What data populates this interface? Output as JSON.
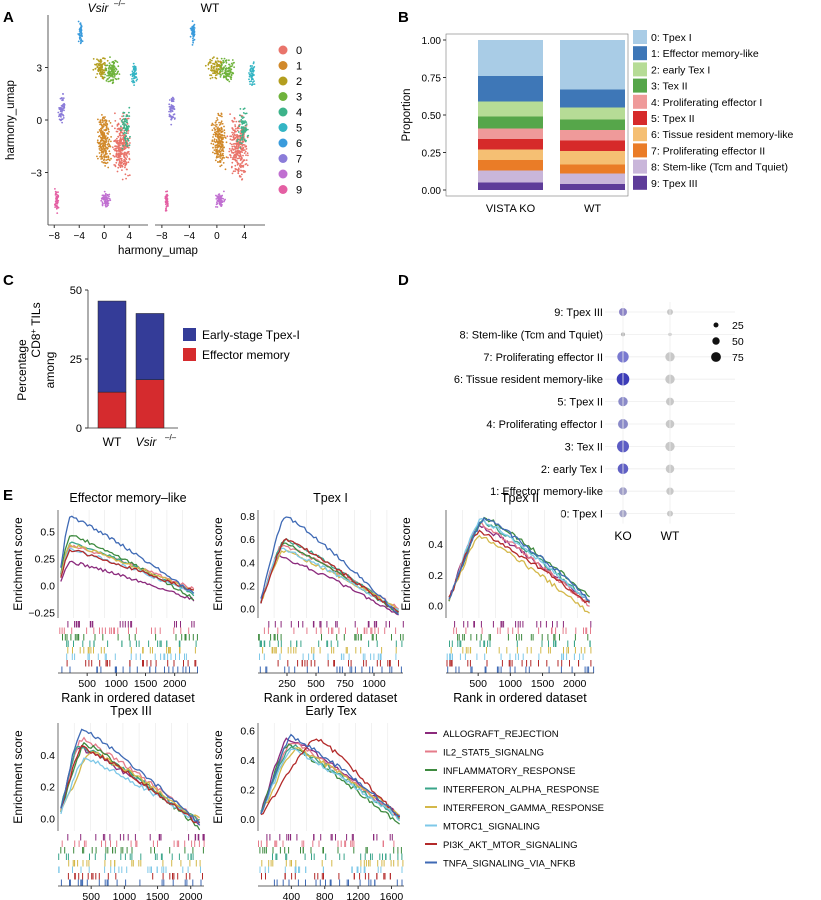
{
  "panels": {
    "A": "A",
    "B": "B",
    "C": "C",
    "D": "D",
    "E": "E"
  },
  "chart_data": [
    {
      "panel": "A",
      "type": "scatter",
      "facets": [
        "Vsir",
        "WT"
      ],
      "facet_superscript": "–/–",
      "xlabel": "harmony_umap",
      "ylabel": "harmony_umap",
      "xticks": [
        "−8",
        "−4",
        "0",
        "4"
      ],
      "yticks": [
        "3",
        "0",
        "−3"
      ],
      "xlim": [
        -9,
        7
      ],
      "ylim": [
        -6,
        6
      ],
      "legend": [
        "0",
        "1",
        "2",
        "3",
        "4",
        "5",
        "6",
        "7",
        "8",
        "9"
      ],
      "colors": [
        "#e9746b",
        "#d1892a",
        "#b39e1f",
        "#6fb33c",
        "#3db38a",
        "#34b5c4",
        "#3a9bdc",
        "#8b7cd9",
        "#c06fd1",
        "#e45fa3"
      ]
    },
    {
      "panel": "B",
      "type": "stacked-bar",
      "ylabel": "Proportion",
      "categories": [
        "VISTA KO",
        "WT"
      ],
      "yticks": [
        "0.00",
        "0.25",
        "0.50",
        "0.75",
        "1.00"
      ],
      "ylim": [
        0,
        1
      ],
      "series": [
        {
          "name": "0: Tpex I",
          "color": "#a9cce6",
          "values": [
            0.24,
            0.33
          ]
        },
        {
          "name": "1: Effector memory-like",
          "color": "#3e77b7",
          "values": [
            0.17,
            0.12
          ]
        },
        {
          "name": "2: early Tex I",
          "color": "#b6dc96",
          "values": [
            0.1,
            0.08
          ]
        },
        {
          "name": "3: Tex II",
          "color": "#56a64a",
          "values": [
            0.08,
            0.07
          ]
        },
        {
          "name": "4: Proliferating effector I",
          "color": "#ef9a9a",
          "values": [
            0.07,
            0.07
          ]
        },
        {
          "name": "5: Tpex II",
          "color": "#d62a2a",
          "values": [
            0.07,
            0.07
          ]
        },
        {
          "name": "6: Tissue resident memory-like",
          "color": "#f5bf73",
          "values": [
            0.07,
            0.09
          ]
        },
        {
          "name": "7: Proliferating effector II",
          "color": "#ea7c27",
          "values": [
            0.07,
            0.06
          ]
        },
        {
          "name": "8: Stem-like (Tcm and Tquiet)",
          "color": "#c9b6da",
          "values": [
            0.08,
            0.07
          ]
        },
        {
          "name": "9: Tpex III",
          "color": "#5e3c99",
          "values": [
            0.05,
            0.04
          ]
        }
      ]
    },
    {
      "panel": "C",
      "type": "stacked-bar",
      "ylabel_lines": [
        "Percentage",
        "among",
        "CD8",
        "+",
        " TILs"
      ],
      "categories": [
        "WT",
        "Vsir"
      ],
      "cat_superscript": "–/–",
      "yticks": [
        "0",
        "25",
        "50"
      ],
      "ylim": [
        0,
        50
      ],
      "series": [
        {
          "name": "Effector memory",
          "color": "#d52b2e",
          "values": [
            13,
            17.5
          ]
        },
        {
          "name": "Early-stage Tpex-I",
          "color": "#343c98",
          "values": [
            33,
            24
          ]
        }
      ]
    },
    {
      "panel": "D",
      "type": "dot",
      "rows": [
        "9: Tpex III",
        "8: Stem-like (Tcm and Tquiet)",
        "7: Proliferating effector II",
        "6: Tissue resident memory-like",
        "5: Tpex II",
        "4: Proliferating effector I",
        "3: Tex II",
        "2: early Tex I",
        "1: Effector memory-like",
        "0: Tpex I"
      ],
      "columns": [
        "KO",
        "WT"
      ],
      "size_legend": [
        "25",
        "50",
        "75"
      ],
      "ko_sizes": [
        45,
        15,
        70,
        80,
        55,
        60,
        75,
        65,
        45,
        40
      ],
      "wt_sizes": [
        30,
        10,
        55,
        55,
        45,
        50,
        55,
        50,
        40,
        30
      ],
      "ko_colors": [
        "#8c84c6",
        "#b3b3b3",
        "#7a7ad0",
        "#3d3db8",
        "#8a8ac8",
        "#8a8ac8",
        "#5c5cc4",
        "#6060c4",
        "#a09fc8",
        "#a4a4c8"
      ],
      "wt_color": "#c8c8c8"
    },
    {
      "panel": "E",
      "type": "line",
      "ylabel": "Enrichment score",
      "xlabel": "Rank in ordered dataset",
      "legend": [
        "ALLOGRAFT_REJECTION",
        "IL2_STAT5_SIGNALNG",
        "INFLAMMATORY_RESPONSE",
        "INTERFERON_ALPHA_RESPONSE",
        "INTERFERON_GAMMA_RESPONSE",
        "MTORC1_SIGNALING",
        "PI3K_AKT_MTOR_SIGNALING",
        "TNFA_SIGNALING_VIA_NFKB"
      ],
      "colors": [
        "#8b2a7c",
        "#e57b8a",
        "#3e8a3f",
        "#3aa58a",
        "#d4b84a",
        "#7ec8e8",
        "#b32a2a",
        "#3f6ab5"
      ],
      "plots": [
        {
          "title": "Effector memory–like",
          "xticks": [
            "500",
            "1000",
            "1500",
            "2000"
          ],
          "xlim": [
            0,
            2400
          ],
          "yticks": [
            "0.5",
            "0.25",
            "0.0",
            "−0.25"
          ],
          "yvals": [
            0.5,
            0.25,
            0.0,
            -0.25
          ],
          "ylim": [
            -0.3,
            0.7
          ],
          "peaks": [
            0.22,
            0.37,
            0.47,
            0.4,
            0.38,
            0.34,
            0.33,
            0.64
          ],
          "peakx": [
            200,
            200,
            200,
            200,
            200,
            200,
            200,
            200
          ],
          "ends": [
            -0.13,
            -0.03,
            -0.12,
            -0.08,
            -0.05,
            -0.07,
            -0.05,
            -0.08
          ]
        },
        {
          "title": "Tpex I",
          "xticks": [
            "250",
            "500",
            "750",
            "1000"
          ],
          "xlim": [
            0,
            1250
          ],
          "yticks": [
            "0.8",
            "0.6",
            "0.4",
            "0.2",
            "0.0"
          ],
          "yvals": [
            0.8,
            0.6,
            0.4,
            0.2,
            0.0
          ],
          "ylim": [
            -0.08,
            0.85
          ],
          "peaks": [
            0.45,
            0.55,
            0.56,
            0.6,
            0.5,
            0.52,
            0.6,
            0.8
          ],
          "peakx": [
            180,
            200,
            220,
            230,
            210,
            200,
            240,
            230
          ],
          "ends": [
            -0.05,
            0.0,
            -0.04,
            -0.03,
            0.0,
            -0.02,
            -0.04,
            -0.05
          ]
        },
        {
          "title": "Tpex II",
          "xticks": [
            "500",
            "1000",
            "1500",
            "2000"
          ],
          "xlim": [
            0,
            2300
          ],
          "yticks": [
            "0.4",
            "0.2",
            "0.0"
          ],
          "yvals": [
            0.4,
            0.2,
            0.0
          ],
          "ylim": [
            -0.08,
            0.62
          ],
          "peaks": [
            0.52,
            0.53,
            0.57,
            0.55,
            0.45,
            0.56,
            0.48,
            0.57
          ],
          "peakx": [
            500,
            520,
            600,
            560,
            520,
            540,
            500,
            600
          ],
          "ends": [
            0.02,
            0.0,
            0.06,
            0.03,
            -0.05,
            0.02,
            0.01,
            0.04
          ]
        },
        {
          "title": "Tpex III",
          "xticks": [
            "500",
            "1000",
            "1500",
            "2000"
          ],
          "xlim": [
            0,
            2200
          ],
          "yticks": [
            "0.4",
            "0.2",
            "0.0"
          ],
          "yvals": [
            0.4,
            0.2,
            0.0
          ],
          "ylim": [
            -0.08,
            0.6
          ],
          "peaks": [
            0.45,
            0.5,
            0.47,
            0.46,
            0.42,
            0.38,
            0.45,
            0.56
          ],
          "peakx": [
            300,
            350,
            400,
            300,
            500,
            400,
            350,
            350
          ],
          "ends": [
            -0.03,
            -0.02,
            -0.06,
            -0.02,
            -0.01,
            -0.03,
            -0.04,
            -0.03
          ]
        },
        {
          "title": "Early Tex",
          "xticks": [
            "400",
            "800",
            "1200",
            "1600"
          ],
          "xlim": [
            0,
            1750
          ],
          "yticks": [
            "0.6",
            "0.4",
            "0.2",
            "0.0"
          ],
          "yvals": [
            0.6,
            0.4,
            0.2,
            0.0
          ],
          "ylim": [
            -0.08,
            0.65
          ],
          "peaks": [
            0.55,
            0.52,
            0.5,
            0.5,
            0.48,
            0.47,
            0.55,
            0.56
          ],
          "peakx": [
            350,
            400,
            350,
            400,
            450,
            400,
            700,
            400
          ],
          "ends": [
            0.02,
            0.0,
            -0.04,
            0.0,
            0.03,
            0.0,
            0.0,
            0.02
          ]
        }
      ]
    }
  ]
}
